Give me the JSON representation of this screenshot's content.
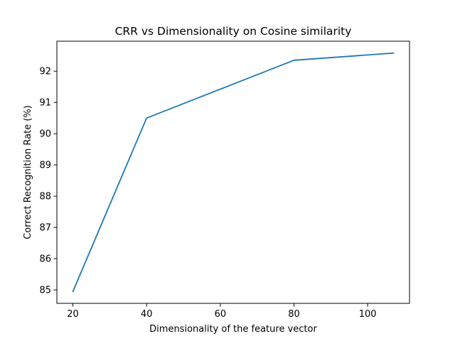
{
  "chart_data": {
    "type": "line",
    "title": "CRR vs Dimensionality on Cosine similarity",
    "xlabel": "Dimensionality of the feature vector",
    "ylabel": "Correct Recognition Rate (%)",
    "x": [
      20,
      40,
      80,
      107
    ],
    "series": [
      {
        "values": [
          84.95,
          90.5,
          92.35,
          92.58
        ],
        "color": "#1f77b4"
      }
    ],
    "xlim": [
      15.65,
      111.35
    ],
    "ylim": [
      84.57,
      92.96
    ],
    "xticks": [
      20,
      40,
      60,
      80,
      100
    ],
    "yticks": [
      85,
      86,
      87,
      88,
      89,
      90,
      91,
      92
    ],
    "grid": false,
    "legend": "none"
  }
}
